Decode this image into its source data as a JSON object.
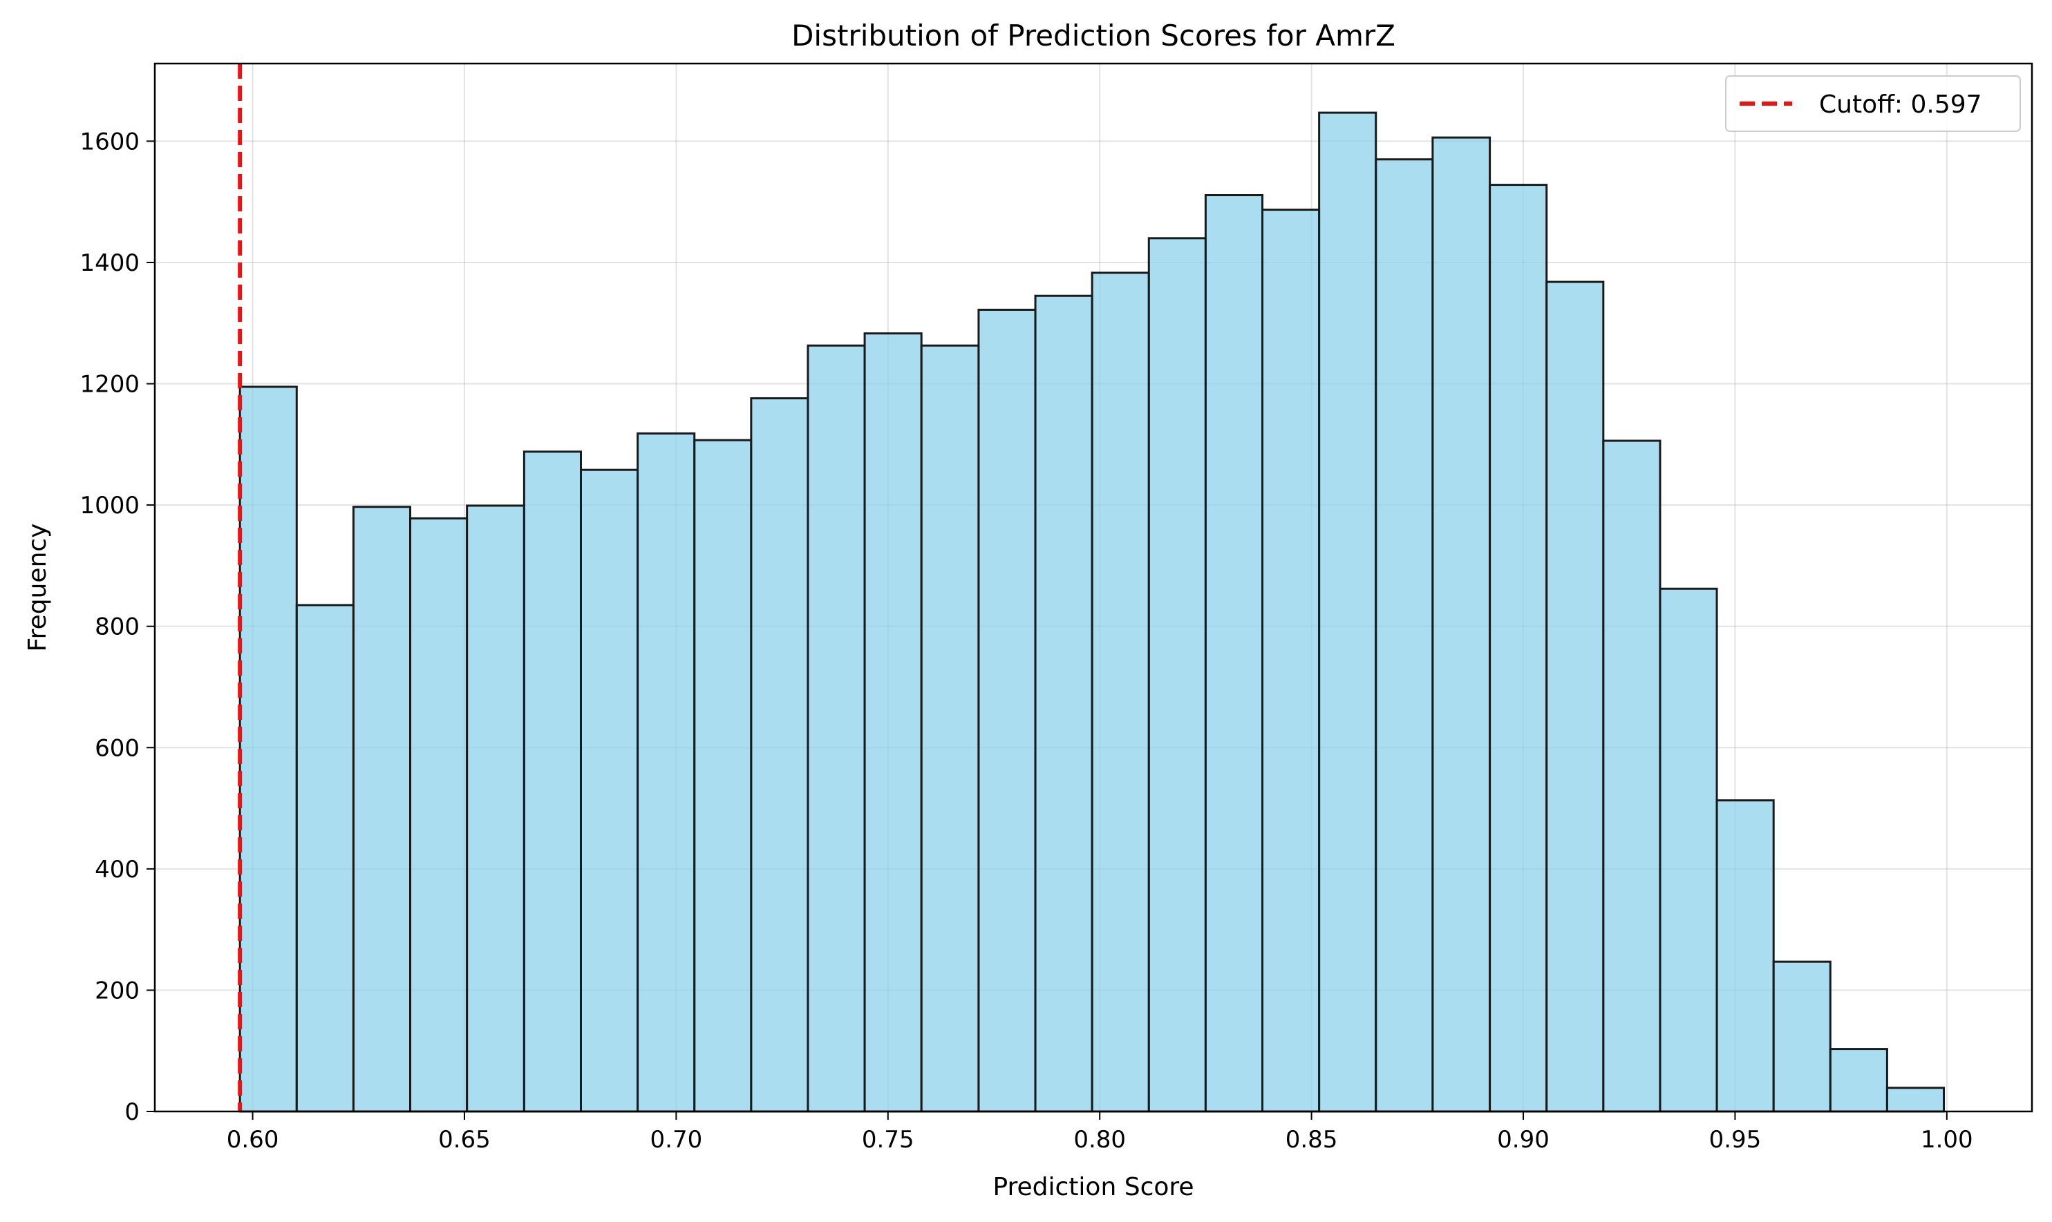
{
  "chart_data": {
    "type": "bar",
    "title": "Distribution of Prediction Scores for AmrZ",
    "xlabel": "Prediction Score",
    "ylabel": "Frequency",
    "xlim": [
      0.5769,
      1.0201
    ],
    "ylim": [
      0,
      1728
    ],
    "xticks": [
      0.6,
      0.65,
      0.7,
      0.75,
      0.8,
      0.85,
      0.9,
      0.95,
      1.0
    ],
    "xtick_labels": [
      "0.60",
      "0.65",
      "0.70",
      "0.75",
      "0.80",
      "0.85",
      "0.90",
      "0.95",
      "1.00"
    ],
    "yticks": [
      0,
      200,
      400,
      600,
      800,
      1000,
      1200,
      1400,
      1600
    ],
    "ytick_labels": [
      "0",
      "200",
      "400",
      "600",
      "800",
      "1000",
      "1200",
      "1400",
      "1600"
    ],
    "grid": true,
    "bin_edges": [
      0.597,
      0.6104,
      0.6238,
      0.6372,
      0.6506,
      0.6641,
      0.6775,
      0.6909,
      0.7043,
      0.7177,
      0.7311,
      0.7445,
      0.7579,
      0.7714,
      0.7848,
      0.7982,
      0.8116,
      0.825,
      0.8384,
      0.8518,
      0.8652,
      0.8786,
      0.8921,
      0.9055,
      0.9189,
      0.9323,
      0.9457,
      0.9591,
      0.9725,
      0.9859,
      0.9993
    ],
    "values": [
      1195,
      835,
      997,
      978,
      999,
      1088,
      1058,
      1118,
      1107,
      1176,
      1263,
      1283,
      1263,
      1322,
      1345,
      1383,
      1440,
      1511,
      1487,
      1647,
      1570,
      1606,
      1528,
      1368,
      1106,
      862,
      513,
      247,
      103,
      39
    ],
    "bar_color": "#87ceeb",
    "bar_edge_color": "#1a1a1a",
    "cutoff": {
      "value": 0.597,
      "label": "Cutoff: 0.597",
      "color": "#ee1111"
    },
    "legend_position": "top-right"
  }
}
